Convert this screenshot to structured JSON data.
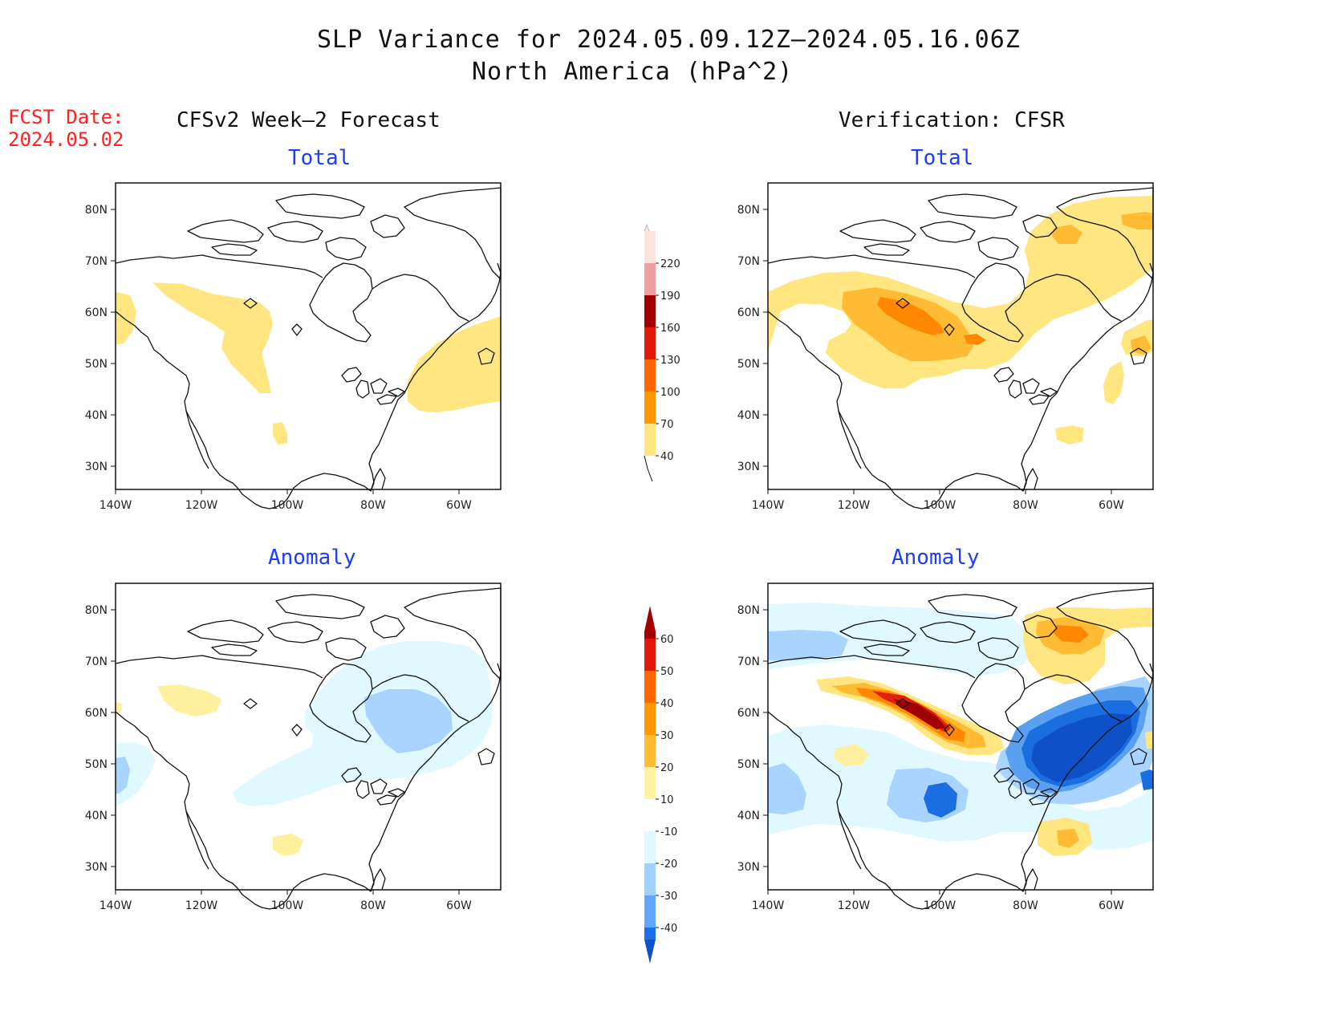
{
  "header": {
    "title_line1": "SLP Variance for 2024.05.09.12Z–2024.05.16.06Z",
    "title_line2": "North America (hPa^2)",
    "fcst_label": "FCST Date:",
    "fcst_date": "2024.05.02"
  },
  "columns": {
    "left": "CFSv2 Week–2 Forecast",
    "right": "Verification: CFSR"
  },
  "panels": {
    "forecast_total": {
      "title": "Total"
    },
    "verification_total": {
      "title": "Total"
    },
    "forecast_anomaly": {
      "title": "Anomaly"
    },
    "verification_anomaly": {
      "title": "Anomaly"
    }
  },
  "axes": {
    "lat_labels": [
      "80N",
      "70N",
      "60N",
      "50N",
      "40N",
      "30N"
    ],
    "lon_labels": [
      "140W",
      "120W",
      "100W",
      "80W",
      "60W"
    ]
  },
  "colorbars": {
    "total": {
      "labels": [
        "220",
        "190",
        "160",
        "130",
        "100",
        "70",
        "40"
      ],
      "colors": [
        "#fde3df",
        "#f0a0a0",
        "#a00000",
        "#e01808",
        "#ff6600",
        "#ff9900",
        "#ffe680"
      ]
    },
    "anomaly": {
      "labels": [
        "60",
        "50",
        "40",
        "30",
        "20",
        "10",
        "-10",
        "-20",
        "-30",
        "-40"
      ],
      "colors": [
        "#a00000",
        "#e01808",
        "#ff6600",
        "#ff9900",
        "#ffbb33",
        "#fff3a0",
        "#ffffff",
        "#e0f8ff",
        "#a0d0ff",
        "#60a8ff",
        "#1a70e8",
        "#1050c8"
      ]
    }
  },
  "fill_colors": {
    "c1": "#fff0a0",
    "c2": "#ffe680",
    "c3": "#ffbb33",
    "c4": "#ff8800",
    "c5": "#e02010",
    "c6": "#a00000",
    "b1": "#e0f8ff",
    "b2": "#a8d4ff",
    "b3": "#5aa0f0",
    "b4": "#1a6ee0",
    "b5": "#0e50c8"
  }
}
